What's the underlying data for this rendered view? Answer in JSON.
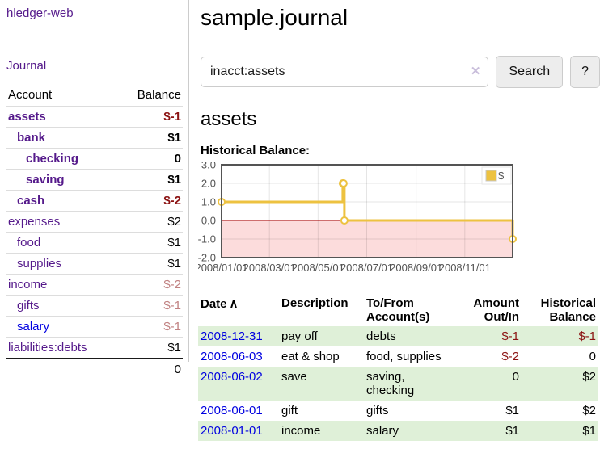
{
  "colors": {
    "link_purple": "#551a8b",
    "link_blue": "#0000e0",
    "negative": "#8b1212",
    "negative_faded": "#c08080",
    "row_stripe_green": "#dff0d8",
    "series_gold": "#edc240",
    "zero_line_red": "#a00000",
    "negative_area_pink": "#fcdcdc",
    "axis_text": "#545454",
    "chart_border": "#545454"
  },
  "sidebar": {
    "brand": "hledger-web",
    "journal_link": "Journal",
    "accounts_table": {
      "col_account": "Account",
      "col_balance": "Balance",
      "rows": [
        {
          "name": "assets",
          "balance": "$-1",
          "indent": 1,
          "bold": true,
          "negative": true
        },
        {
          "name": "bank",
          "balance": "$1",
          "indent": 2,
          "bold": true
        },
        {
          "name": "checking",
          "balance": "0",
          "indent": 3,
          "bold": true
        },
        {
          "name": "saving",
          "balance": "$1",
          "indent": 3,
          "bold": true
        },
        {
          "name": "cash",
          "balance": "$-2",
          "indent": 2,
          "bold": true,
          "negative": true
        },
        {
          "name": "expenses",
          "balance": "$2",
          "indent": 1
        },
        {
          "name": "food",
          "balance": "$1",
          "indent": 2
        },
        {
          "name": "supplies",
          "balance": "$1",
          "indent": 2
        },
        {
          "name": "income",
          "balance": "$-2",
          "indent": 1,
          "faded": true
        },
        {
          "name": "gifts",
          "balance": "$-1",
          "indent": 2,
          "faded": true
        },
        {
          "name": "salary",
          "balance": "$-1",
          "indent": 2,
          "faded": true,
          "blue_link": true
        },
        {
          "name": "liabilities:debts",
          "balance": "$1",
          "indent": 1
        }
      ],
      "total": "0"
    }
  },
  "main": {
    "title": "sample.journal",
    "search": {
      "value": "inacct:assets",
      "clear_icon": "✕",
      "search_button": "Search",
      "help_button": "?"
    },
    "account_heading": "assets",
    "chart_title": "Historical Balance:"
  },
  "chart_data": {
    "type": "line",
    "step": true,
    "title": "Historical Balance",
    "series": [
      {
        "name": "$",
        "color": "#edc240",
        "points": [
          [
            "2008-01-01",
            1
          ],
          [
            "2008-06-01",
            2
          ],
          [
            "2008-06-02",
            2
          ],
          [
            "2008-06-03",
            0
          ],
          [
            "2008-12-31",
            -1
          ]
        ]
      }
    ],
    "x_domain": [
      "2008-01-01",
      "2008-12-31"
    ],
    "ylim": [
      -2,
      3
    ],
    "yticks": [
      3,
      2,
      1,
      0,
      -1,
      -2
    ],
    "ytick_labels": [
      "3.0",
      "2.0",
      "1.0",
      "0.0",
      "-1.0",
      "-2.0"
    ],
    "xtick_labels": [
      "2008/01/01",
      "2008/03/01",
      "2008/05/01",
      "2008/07/01",
      "2008/09/01",
      "2008/11/01"
    ],
    "legend": {
      "label": "$",
      "position": "ne"
    },
    "grid": true,
    "negative_region_below": 0
  },
  "register": {
    "headers": [
      {
        "label": "Date",
        "sort_icon": "∧",
        "align": "left"
      },
      {
        "label": "Description",
        "align": "left"
      },
      {
        "label": "To/From Account(s)",
        "align": "left"
      },
      {
        "label": "Amount Out/In",
        "align": "right"
      },
      {
        "label": "Historical Balance",
        "align": "right"
      }
    ],
    "rows": [
      {
        "date": "2008-12-31",
        "description": "pay off",
        "accounts": "debts",
        "amount": "$-1",
        "amount_negative": true,
        "balance": "$-1",
        "balance_negative": true,
        "stripe": true
      },
      {
        "date": "2008-06-03",
        "description": "eat & shop",
        "accounts": "food, supplies",
        "amount": "$-2",
        "amount_negative": true,
        "balance": "0"
      },
      {
        "date": "2008-06-02",
        "description": "save",
        "accounts": "saving, checking",
        "amount": "0",
        "balance": "$2",
        "stripe": true
      },
      {
        "date": "2008-06-01",
        "description": "gift",
        "accounts": "gifts",
        "amount": "$1",
        "balance": "$2"
      },
      {
        "date": "2008-01-01",
        "description": "income",
        "accounts": "salary",
        "amount": "$1",
        "balance": "$1",
        "stripe": true
      }
    ]
  }
}
